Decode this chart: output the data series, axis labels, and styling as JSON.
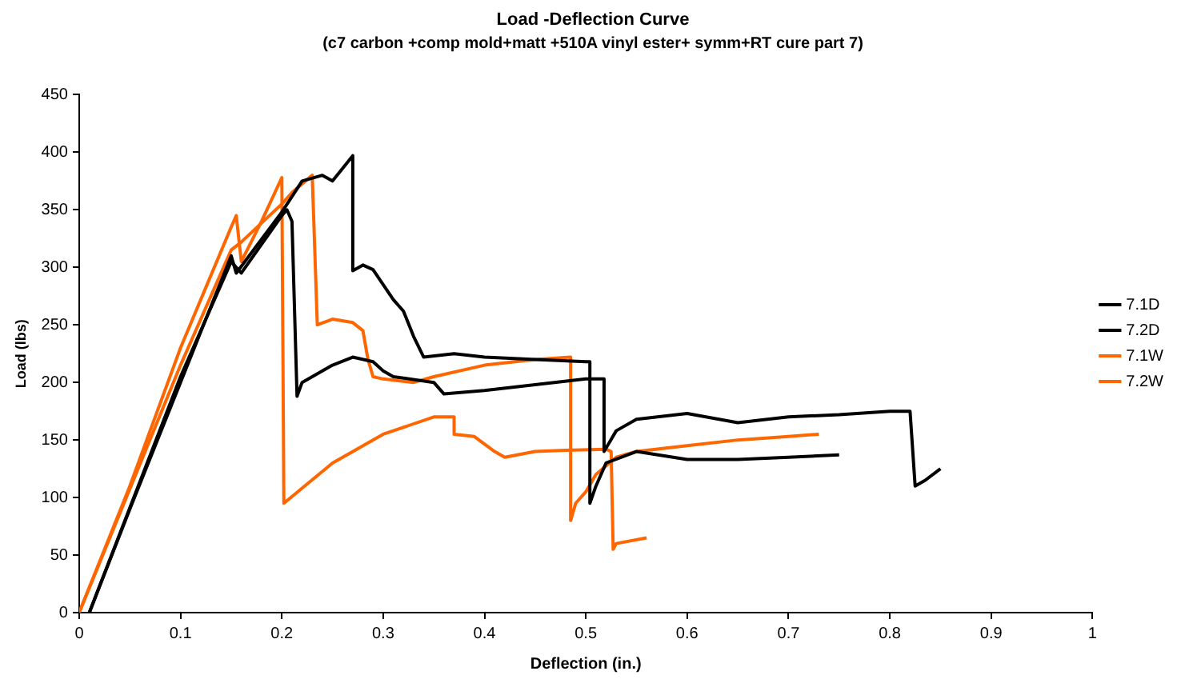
{
  "chart_data": {
    "type": "line",
    "title": "Load -Deflection Curve",
    "subtitle": "(c7 carbon +comp mold+matt +510A vinyl ester+ symm+RT cure part 7)",
    "xlabel": "Deflection (in.)",
    "ylabel": "Load (lbs)",
    "xlim": [
      0,
      1
    ],
    "xticks": [
      0,
      0.1,
      0.2,
      0.3,
      0.4,
      0.5,
      0.6,
      0.7,
      0.8,
      0.9,
      1
    ],
    "ylim": [
      0,
      450
    ],
    "yticks": [
      0,
      50,
      100,
      150,
      200,
      250,
      300,
      350,
      400,
      450
    ],
    "grid": false,
    "legend": "right",
    "marker": "none",
    "line_style": "solid",
    "series": [
      {
        "name": "7.1D",
        "color": "#000000",
        "x": [
          0.01,
          0.05,
          0.1,
          0.15,
          0.155,
          0.2,
          0.22,
          0.24,
          0.25,
          0.27,
          0.27,
          0.28,
          0.29,
          0.3,
          0.31,
          0.32,
          0.33,
          0.34,
          0.37,
          0.4,
          0.45,
          0.5,
          0.504,
          0.504,
          0.51,
          0.52,
          0.55,
          0.6,
          0.65,
          0.7,
          0.75
        ],
        "values": [
          0,
          90,
          200,
          310,
          295,
          348,
          375,
          380,
          375,
          397,
          297,
          302,
          298,
          285,
          272,
          262,
          240,
          222,
          225,
          222,
          220,
          218,
          218,
          95,
          110,
          130,
          140,
          133,
          133,
          135,
          137
        ]
      },
      {
        "name": "7.2D",
        "color": "#000000",
        "x": [
          0.01,
          0.1,
          0.15,
          0.16,
          0.2,
          0.205,
          0.21,
          0.215,
          0.22,
          0.25,
          0.27,
          0.29,
          0.3,
          0.31,
          0.35,
          0.36,
          0.4,
          0.5,
          0.518,
          0.518,
          0.53,
          0.55,
          0.6,
          0.65,
          0.7,
          0.75,
          0.8,
          0.82,
          0.825,
          0.835,
          0.85
        ],
        "values": [
          0,
          205,
          305,
          295,
          345,
          350,
          340,
          188,
          200,
          215,
          222,
          218,
          210,
          205,
          200,
          190,
          193,
          203,
          203,
          140,
          158,
          168,
          173,
          165,
          170,
          172,
          175,
          175,
          110,
          115,
          125
        ]
      },
      {
        "name": "7.1W",
        "color": "#ff6600",
        "x": [
          0,
          0.05,
          0.1,
          0.15,
          0.155,
          0.16,
          0.18,
          0.2,
          0.202,
          0.25,
          0.3,
          0.35,
          0.37,
          0.37,
          0.39,
          0.41,
          0.42,
          0.45,
          0.48,
          0.52,
          0.525,
          0.527,
          0.53,
          0.56
        ],
        "values": [
          0,
          110,
          230,
          335,
          345,
          305,
          340,
          378,
          95,
          130,
          155,
          170,
          170,
          155,
          153,
          140,
          135,
          140,
          141,
          142,
          140,
          55,
          60,
          65
        ]
      },
      {
        "name": "7.2W",
        "color": "#ff6600",
        "x": [
          0,
          0.1,
          0.15,
          0.16,
          0.2,
          0.21,
          0.23,
          0.235,
          0.25,
          0.27,
          0.28,
          0.285,
          0.29,
          0.3,
          0.33,
          0.35,
          0.4,
          0.45,
          0.485,
          0.485,
          0.49,
          0.5,
          0.51,
          0.53,
          0.55,
          0.6,
          0.65,
          0.7,
          0.73
        ],
        "values": [
          0,
          215,
          315,
          322,
          355,
          365,
          380,
          250,
          255,
          252,
          245,
          220,
          205,
          203,
          200,
          205,
          215,
          220,
          222,
          80,
          95,
          105,
          120,
          135,
          140,
          145,
          150,
          153,
          155
        ]
      }
    ]
  }
}
